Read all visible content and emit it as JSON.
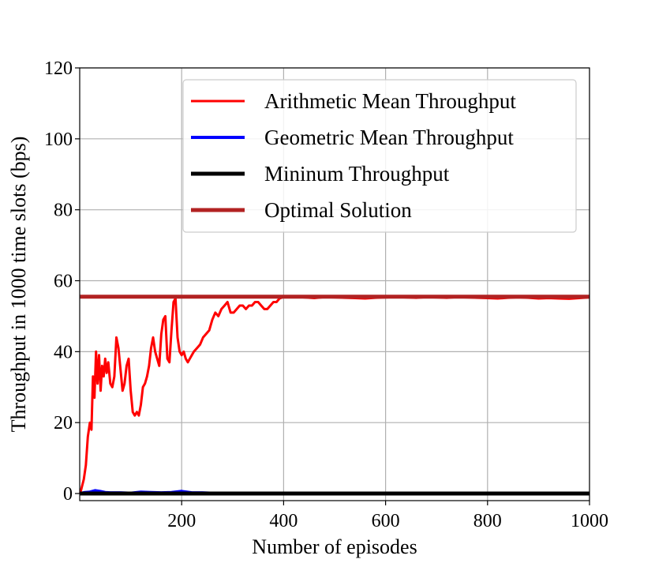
{
  "chart_data": {
    "type": "line",
    "title": "",
    "xlabel": "Number of episodes",
    "ylabel": "Throughput in 1000 time slots (bps)",
    "xlim": [
      0,
      1000
    ],
    "ylim": [
      -2,
      120
    ],
    "xticks": [
      200,
      400,
      600,
      800,
      1000
    ],
    "yticks": [
      0,
      20,
      40,
      60,
      80,
      100,
      120
    ],
    "grid": true,
    "legend_position": "top-right",
    "series": [
      {
        "name": "Arithmetic Mean Throughput",
        "color": "#ff0000",
        "x": [
          1,
          8,
          12,
          16,
          20,
          23,
          26,
          29,
          32,
          35,
          38,
          41,
          44,
          47,
          50,
          53,
          56,
          60,
          64,
          68,
          72,
          76,
          80,
          84,
          88,
          92,
          96,
          100,
          104,
          108,
          112,
          116,
          120,
          124,
          128,
          132,
          136,
          140,
          144,
          148,
          152,
          156,
          160,
          164,
          168,
          172,
          176,
          180,
          184,
          188,
          192,
          196,
          200,
          204,
          208,
          212,
          216,
          220,
          224,
          230,
          236,
          242,
          248,
          254,
          260,
          266,
          272,
          278,
          284,
          290,
          296,
          302,
          308,
          314,
          320,
          326,
          332,
          338,
          344,
          350,
          356,
          362,
          368,
          374,
          380,
          386,
          392,
          398,
          402,
          410,
          420,
          440,
          460,
          480,
          500,
          520,
          540,
          560,
          580,
          600,
          620,
          640,
          660,
          680,
          700,
          720,
          740,
          760,
          780,
          800,
          820,
          840,
          860,
          880,
          900,
          920,
          940,
          960,
          980,
          1000
        ],
        "y": [
          0,
          4,
          8,
          16,
          20,
          18,
          33,
          27,
          40,
          31,
          39,
          29,
          36,
          33,
          38,
          34,
          37,
          31,
          30,
          33,
          44,
          41,
          35,
          29,
          31,
          36,
          38,
          29,
          23,
          22,
          23,
          22,
          25,
          30,
          31,
          33,
          36,
          41,
          44,
          40,
          38,
          36,
          45,
          49,
          50,
          38,
          37,
          46,
          54,
          55,
          44,
          40,
          39,
          40,
          38,
          37,
          38,
          39,
          40,
          41,
          42,
          44,
          45,
          46,
          49,
          51,
          50,
          52,
          53,
          54,
          51,
          51,
          52,
          53,
          53,
          52,
          53,
          53,
          54,
          54,
          53,
          52,
          52,
          53,
          54,
          54,
          55,
          55.3,
          55.5,
          55.4,
          55.5,
          55.3,
          55.1,
          55.4,
          55.3,
          55.2,
          55.1,
          55.0,
          55.2,
          55.3,
          55.4,
          55.3,
          55.2,
          55.4,
          55.3,
          55.2,
          55.4,
          55.3,
          55.2,
          55.1,
          55.0,
          55.2,
          55.3,
          55.2,
          55.0,
          55.1,
          55.0,
          54.9,
          55.1,
          55.3
        ],
        "stroke_width": 3
      },
      {
        "name": "Geometric Mean Throughput",
        "color": "#0000ff",
        "x": [
          1,
          10,
          20,
          30,
          40,
          50,
          60,
          80,
          100,
          120,
          140,
          160,
          180,
          200,
          210,
          220,
          240,
          260,
          300,
          400,
          500,
          600,
          700,
          800,
          900,
          1000
        ],
        "y": [
          0,
          0.3,
          0.4,
          0.8,
          0.6,
          0.3,
          0.2,
          0.2,
          0.1,
          0.4,
          0.3,
          0.2,
          0.3,
          0.6,
          0.4,
          0.2,
          0.2,
          0.1,
          0.1,
          0,
          0,
          0,
          0,
          0,
          0,
          0
        ],
        "stroke_width": 4
      },
      {
        "name": "Mininum Throughput",
        "color": "#000000",
        "x": [
          1,
          1000
        ],
        "y": [
          0,
          0
        ],
        "stroke_width": 5
      },
      {
        "name": "Optimal Solution",
        "color": "#b22222",
        "x": [
          1,
          1000
        ],
        "y": [
          55.5,
          55.5
        ],
        "stroke_width": 5
      }
    ]
  }
}
